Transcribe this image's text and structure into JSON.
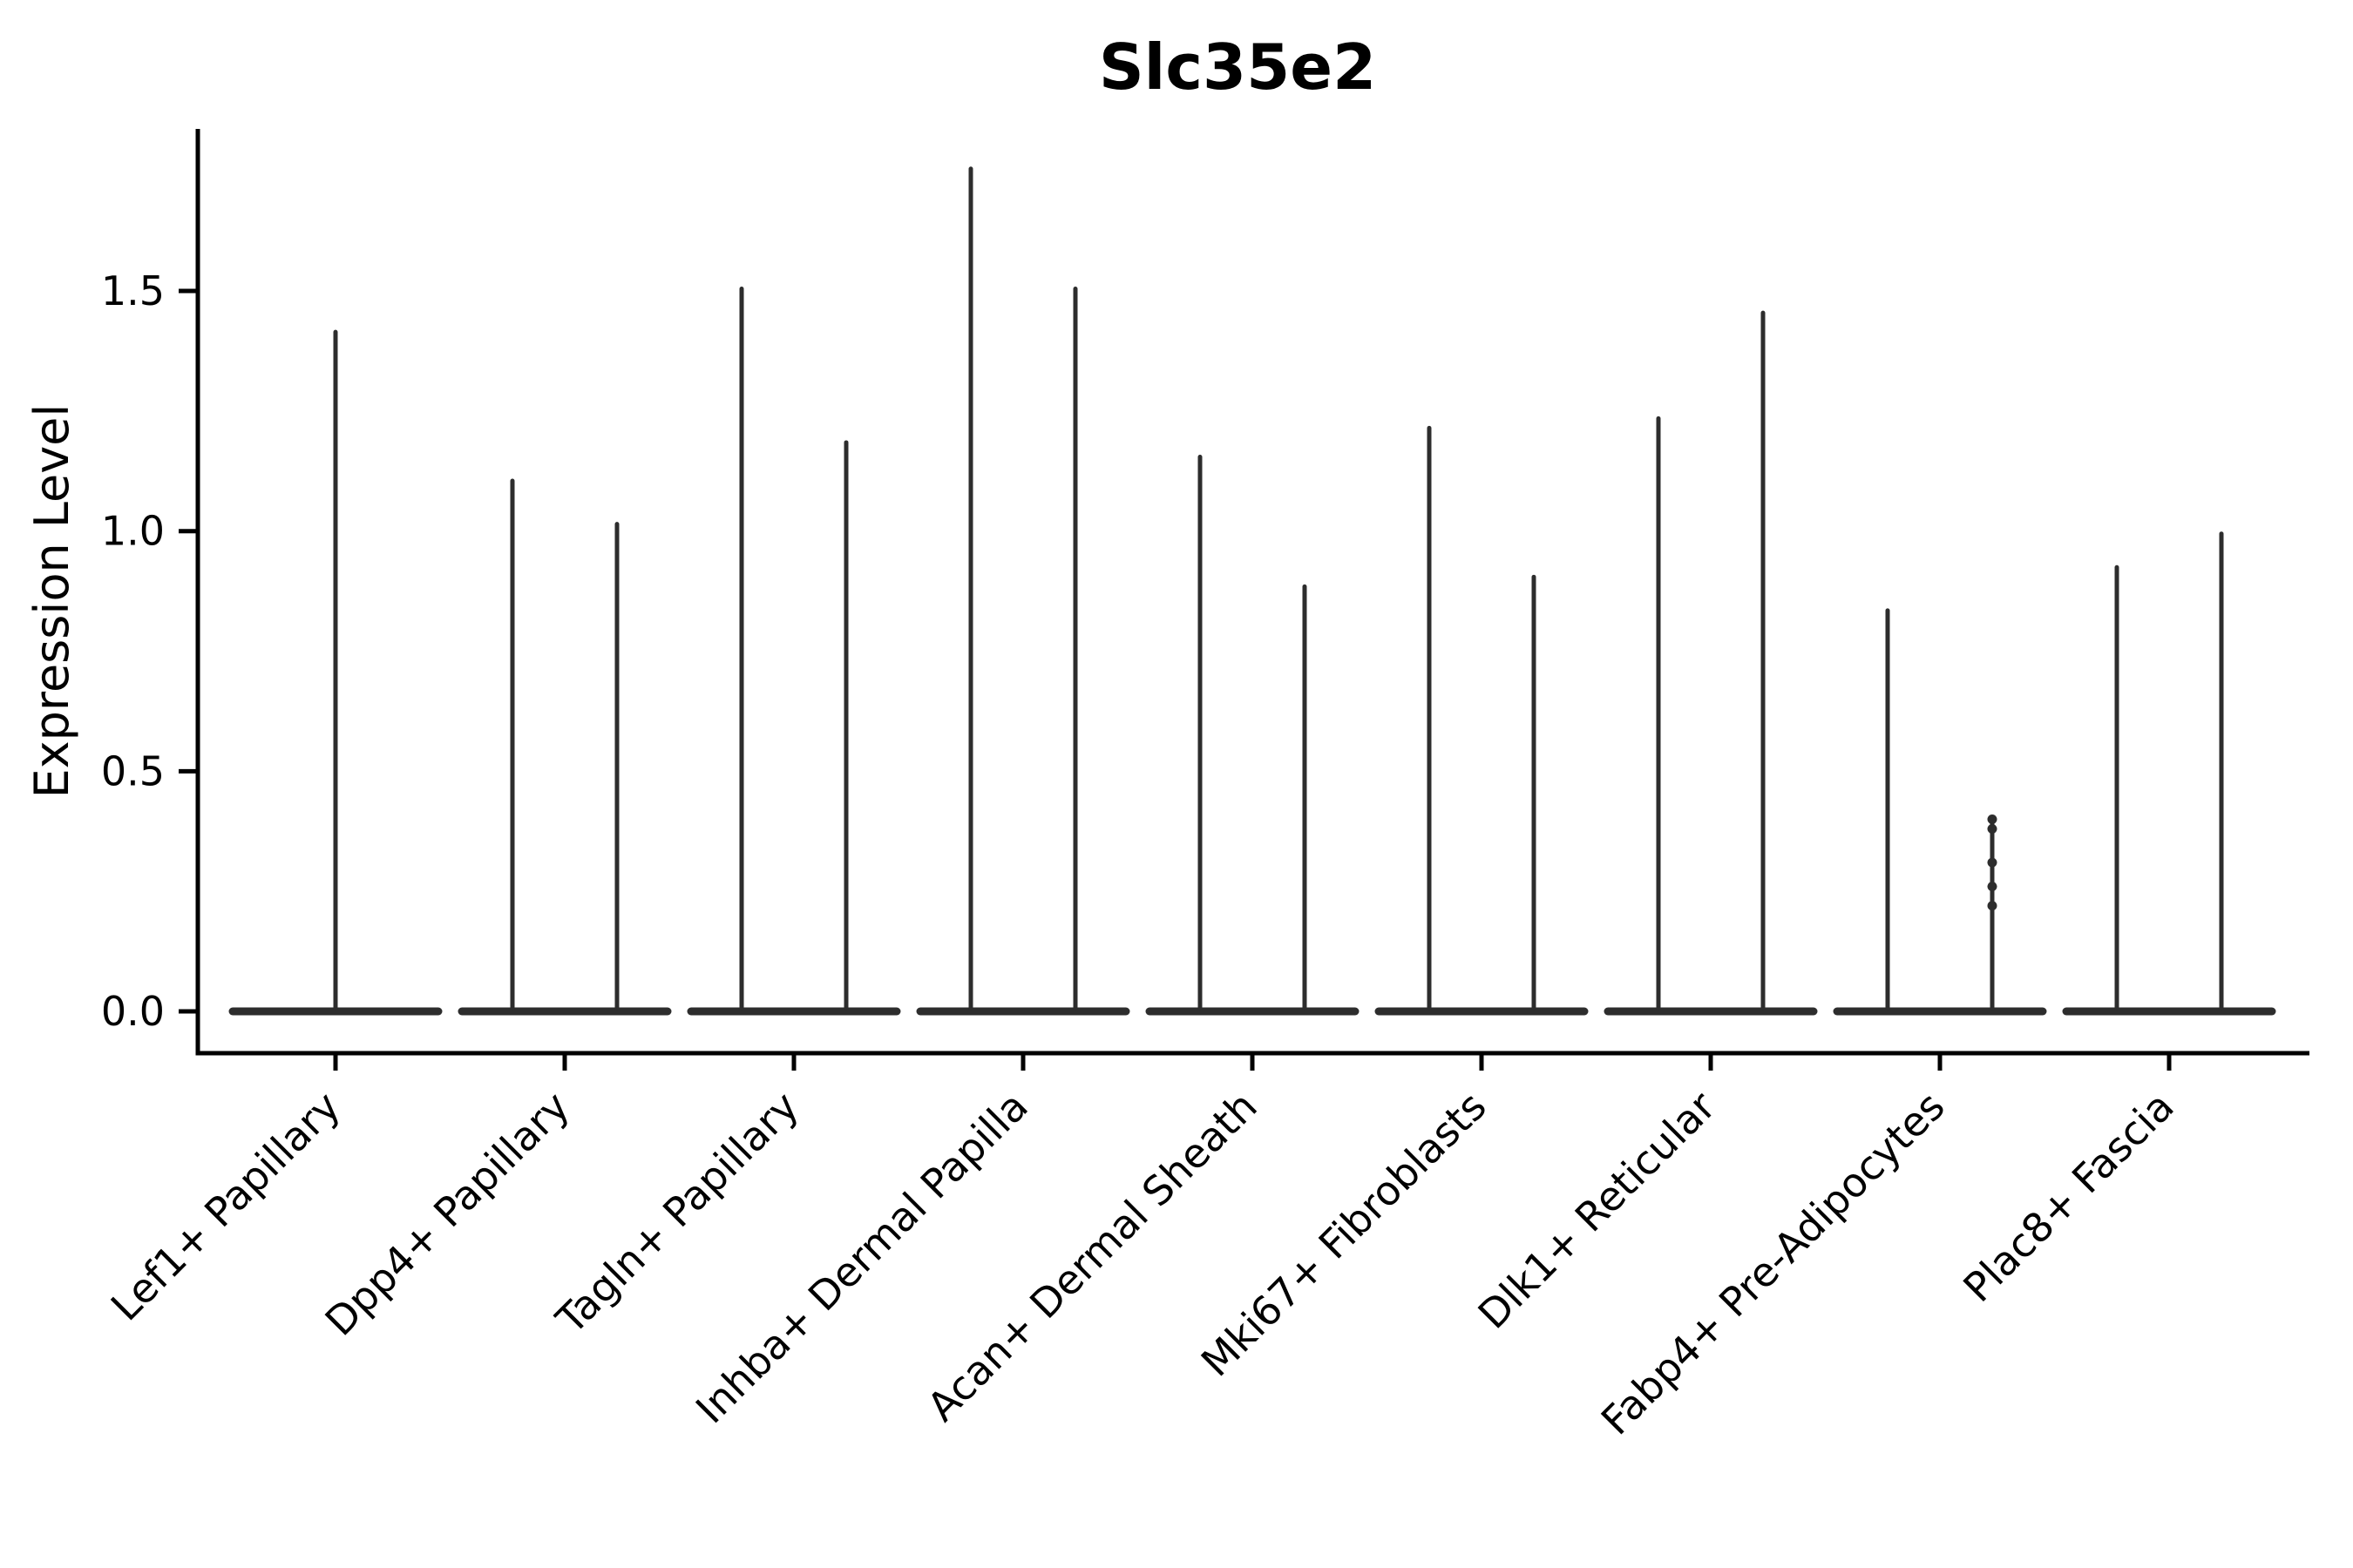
{
  "chart_data": {
    "type": "violin",
    "title": "Slc35e2",
    "ylabel": "Expression Level",
    "xlabel": "",
    "yticks": [
      0.0,
      0.5,
      1.0,
      1.5
    ],
    "ytick_labels": [
      "0.0",
      "0.5",
      "1.0",
      "1.5"
    ],
    "ylim": [
      0.0,
      1.83
    ],
    "grid": "off",
    "legend": "none",
    "violin_color": "#2d2d2d",
    "axis_color": "#000000",
    "baseline_value": 0.0,
    "categories": [
      {
        "label": "Lef1+ Papillary",
        "violin_max": [
          1.42
        ]
      },
      {
        "label": "Dpp4+ Papillary",
        "violin_max": [
          1.11,
          1.02
        ]
      },
      {
        "label": "Tagln+ Papillary",
        "violin_max": [
          1.51,
          1.19
        ]
      },
      {
        "label": "Inhba+ Dermal Papilla",
        "violin_max": [
          1.76,
          1.51
        ]
      },
      {
        "label": "Acan+ Dermal Sheath",
        "violin_max": [
          1.16,
          0.89
        ]
      },
      {
        "label": "Mki67+ Fibroblasts",
        "violin_max": [
          1.22,
          0.91
        ]
      },
      {
        "label": "Dlk1+ Reticular",
        "violin_max": [
          1.24,
          1.46
        ]
      },
      {
        "label": "Fabp4+ Pre-Adipocytes",
        "violin_max": [
          0.84,
          0.4
        ],
        "jitter_points_right": [
          0.4,
          0.38,
          0.31,
          0.26,
          0.22
        ]
      },
      {
        "label": "Plac8+ Fascia",
        "violin_max": [
          0.93,
          1.0
        ]
      }
    ]
  }
}
